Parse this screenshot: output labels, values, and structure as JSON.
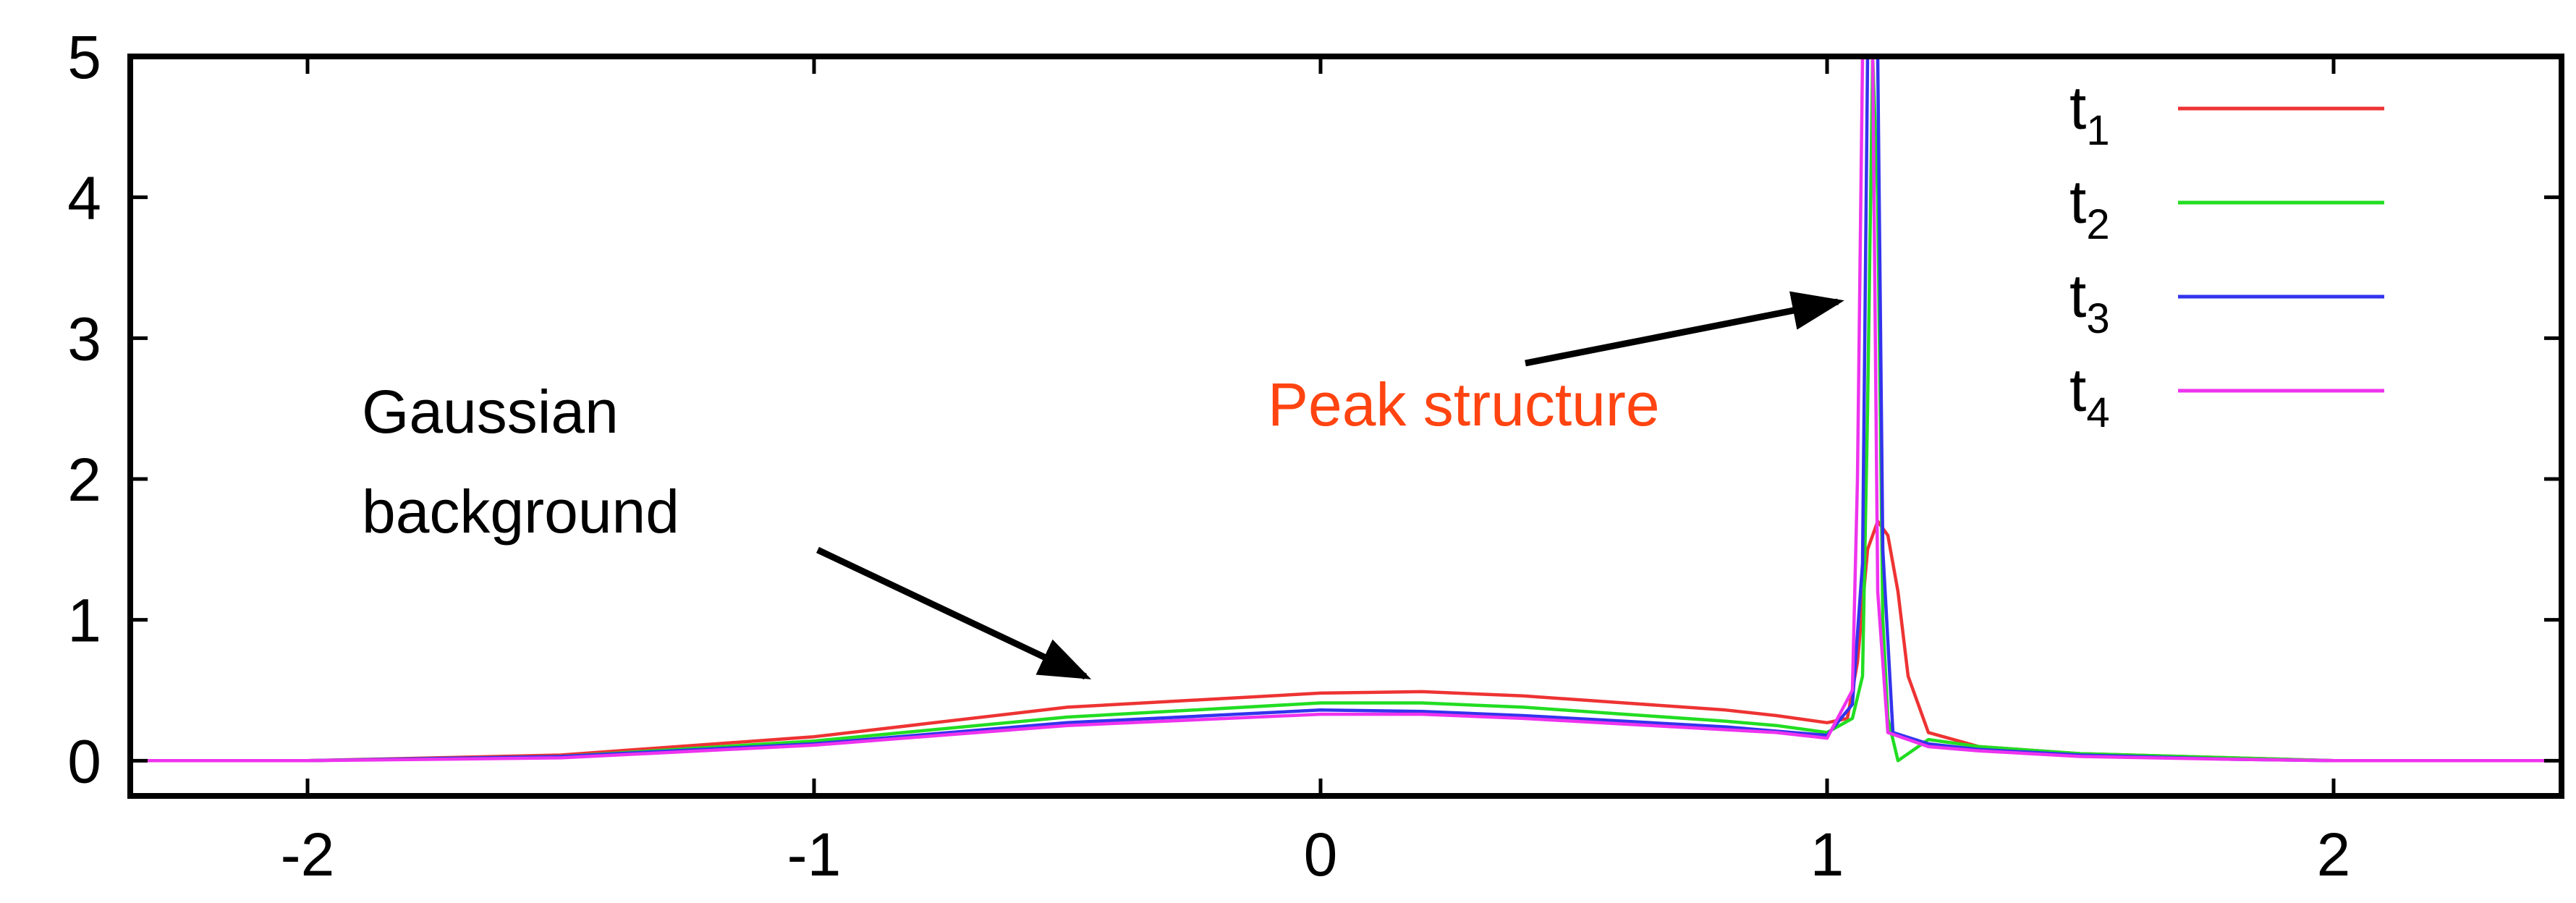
{
  "chart_data": {
    "type": "line",
    "title": "",
    "xlabel": "",
    "ylabel": "",
    "xlim": [
      -2.35,
      2.45
    ],
    "ylim": [
      -0.25,
      5
    ],
    "xticks": [
      -2,
      -1,
      0,
      1,
      2
    ],
    "xtick_labels": [
      "-2",
      "-1",
      "0",
      "1",
      "2"
    ],
    "yticks": [
      0,
      1,
      2,
      3,
      4,
      5
    ],
    "ytick_labels": [
      "0",
      "1",
      "2",
      "3",
      "4",
      "5"
    ],
    "grid": false,
    "legend_position": "top-right",
    "series": [
      {
        "name": "t",
        "sub": "1",
        "color": "#ee3333",
        "amp": 0.5,
        "center": 0.2,
        "width": 0.62,
        "x": [
          -2.35,
          -2.0,
          -1.5,
          -1.0,
          -0.5,
          0.0,
          0.2,
          0.4,
          0.6,
          0.8,
          0.9,
          1.0,
          1.04,
          1.06,
          1.08,
          1.1,
          1.12,
          1.14,
          1.16,
          1.2,
          1.3,
          1.5,
          1.8,
          2.0,
          2.45
        ],
        "y": [
          0.0,
          0.0,
          0.04,
          0.17,
          0.38,
          0.48,
          0.49,
          0.46,
          0.41,
          0.36,
          0.32,
          0.27,
          0.3,
          0.7,
          1.5,
          1.7,
          1.6,
          1.2,
          0.6,
          0.2,
          0.1,
          0.05,
          0.02,
          0.0,
          0.0
        ]
      },
      {
        "name": "t",
        "sub": "2",
        "color": "#22dd22",
        "amp": 0.42,
        "center": 0.1,
        "width": 0.62,
        "x": [
          -2.35,
          -2.0,
          -1.5,
          -1.0,
          -0.5,
          0.0,
          0.2,
          0.4,
          0.6,
          0.8,
          0.9,
          1.0,
          1.05,
          1.07,
          1.08,
          1.09,
          1.1,
          1.11,
          1.12,
          1.14,
          1.2,
          1.3,
          1.5,
          1.8,
          2.0,
          2.45
        ],
        "y": [
          0.0,
          0.0,
          0.03,
          0.14,
          0.31,
          0.41,
          0.41,
          0.38,
          0.33,
          0.28,
          0.25,
          0.2,
          0.3,
          0.6,
          2.5,
          5.0,
          4.0,
          1.0,
          0.3,
          0.0,
          0.15,
          0.1,
          0.05,
          0.02,
          0.0,
          0.0
        ]
      },
      {
        "name": "t",
        "sub": "3",
        "color": "#3333ee",
        "amp": 0.36,
        "center": 0.05,
        "width": 0.6,
        "x": [
          -2.35,
          -2.0,
          -1.5,
          -1.0,
          -0.5,
          0.0,
          0.2,
          0.4,
          0.6,
          0.8,
          0.9,
          1.0,
          1.05,
          1.07,
          1.08,
          1.09,
          1.1,
          1.11,
          1.13,
          1.2,
          1.3,
          1.5,
          1.8,
          2.0,
          2.45
        ],
        "y": [
          0.0,
          0.0,
          0.03,
          0.12,
          0.27,
          0.36,
          0.35,
          0.32,
          0.28,
          0.24,
          0.21,
          0.18,
          0.4,
          1.4,
          5.0,
          5.0,
          5.0,
          1.5,
          0.2,
          0.12,
          0.08,
          0.04,
          0.01,
          0.0,
          0.0
        ]
      },
      {
        "name": "t",
        "sub": "4",
        "color": "#ee33ee",
        "amp": 0.33,
        "center": 0.0,
        "width": 0.6,
        "x": [
          -2.35,
          -2.0,
          -1.5,
          -1.0,
          -0.5,
          0.0,
          0.2,
          0.4,
          0.6,
          0.8,
          0.9,
          1.0,
          1.05,
          1.06,
          1.07,
          1.08,
          1.09,
          1.1,
          1.12,
          1.2,
          1.3,
          1.5,
          1.8,
          2.0,
          2.45
        ],
        "y": [
          0.0,
          0.0,
          0.02,
          0.11,
          0.25,
          0.33,
          0.33,
          0.3,
          0.26,
          0.22,
          0.2,
          0.16,
          0.5,
          2.0,
          5.0,
          5.0,
          5.0,
          1.2,
          0.2,
          0.1,
          0.07,
          0.03,
          0.01,
          0.0,
          0.0
        ]
      }
    ],
    "annotations": [
      {
        "lines": [
          "Gaussian",
          "background"
        ],
        "color": "#000000"
      },
      {
        "lines": [
          "Peak structure"
        ],
        "color": "#ff4411"
      }
    ]
  }
}
